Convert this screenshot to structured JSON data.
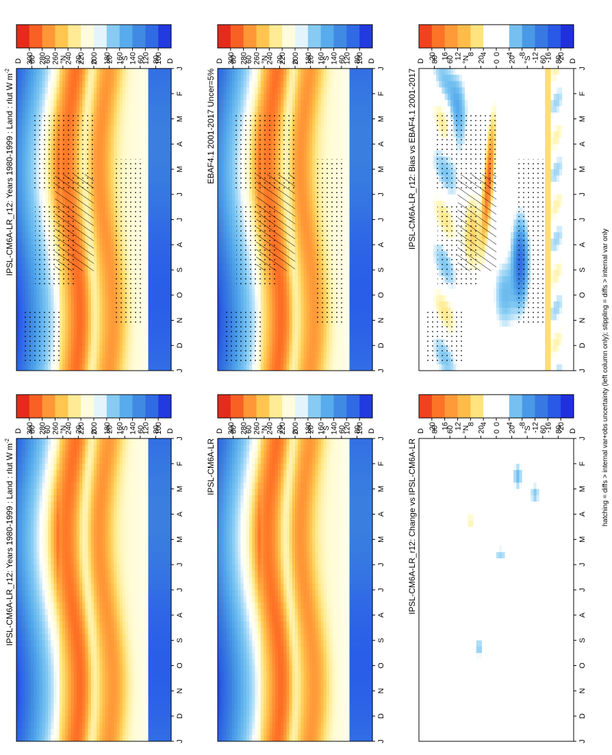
{
  "figure": {
    "footnote": "hatching = diffs > internal var+obs uncertainty (left column only); stippling = diffs > internal var only"
  },
  "chart_data": [
    {
      "type": "heatmap",
      "title": "IPSL-CM6A-LR_r12: Years 1980-1999 : Land : rlut W m",
      "title_sup": "-2",
      "x_ticks": [
        "J",
        "F",
        "M",
        "A",
        "M",
        "J",
        "J",
        "A",
        "S",
        "O",
        "N",
        "D",
        "J"
      ],
      "y_ticks": [
        "80",
        "60",
        "°N",
        "20",
        "0",
        "20",
        "°S",
        "60",
        "80"
      ],
      "y_edges": [
        "D",
        "D"
      ],
      "colorbar": {
        "labels": [
          "300",
          "280",
          "260",
          "240",
          "220",
          "200",
          "180",
          "160",
          "140",
          "120",
          "100"
        ],
        "min": 90,
        "max": 310
      },
      "pattern": "absolute",
      "stippling": true,
      "hatching": true
    },
    {
      "type": "heatmap",
      "title": "IPSL-CM6A-LR_r12: Years 1980-1999 : Land : rlut W m",
      "title_sup": "-2",
      "x_ticks": [
        "J",
        "F",
        "M",
        "A",
        "M",
        "J",
        "J",
        "A",
        "S",
        "O",
        "N",
        "D",
        "J"
      ],
      "y_ticks": [
        "80",
        "60",
        "°N",
        "20",
        "0",
        "20",
        "°S",
        "60",
        "80"
      ],
      "y_edges": [
        "D",
        "D"
      ],
      "colorbar": {
        "labels": [
          "300",
          "280",
          "260",
          "240",
          "220",
          "200",
          "180",
          "160",
          "140",
          "120",
          "100"
        ],
        "min": 90,
        "max": 310
      },
      "pattern": "absolute",
      "stippling": false,
      "hatching": false
    },
    {
      "type": "heatmap",
      "title": "EBAF4.1 2001-2017 Uncer=5%",
      "x_ticks": [
        "J",
        "F",
        "M",
        "A",
        "M",
        "J",
        "J",
        "A",
        "S",
        "O",
        "N",
        "D",
        "J"
      ],
      "y_ticks": [
        "80",
        "60",
        "°N",
        "20",
        "0",
        "20",
        "°S",
        "60",
        "80"
      ],
      "y_edges": [
        "D",
        "D"
      ],
      "colorbar": {
        "labels": [
          "300",
          "280",
          "260",
          "240",
          "220",
          "200",
          "180",
          "160",
          "140",
          "120",
          "100"
        ],
        "min": 90,
        "max": 310
      },
      "pattern": "absolute",
      "stippling": true,
      "hatching": true
    },
    {
      "type": "heatmap",
      "title": "IPSL-CM6A-LR",
      "x_ticks": [
        "J",
        "F",
        "M",
        "A",
        "M",
        "J",
        "J",
        "A",
        "S",
        "O",
        "N",
        "D",
        "J"
      ],
      "y_ticks": [
        "80",
        "60",
        "°N",
        "20",
        "0",
        "20",
        "°S",
        "60",
        "80"
      ],
      "y_edges": [
        "D",
        "D"
      ],
      "colorbar": {
        "labels": [
          "300",
          "280",
          "260",
          "240",
          "220",
          "200",
          "180",
          "160",
          "140",
          "120",
          "100"
        ],
        "min": 90,
        "max": 310
      },
      "pattern": "absolute",
      "stippling": false,
      "hatching": false
    },
    {
      "type": "heatmap",
      "title": "IPSL-CM6A-LR_r12: Bias vs EBAF4.1 2001-2017",
      "x_ticks": [
        "J",
        "F",
        "M",
        "A",
        "M",
        "J",
        "J",
        "A",
        "S",
        "O",
        "N",
        "D",
        "J"
      ],
      "y_ticks": [
        "80",
        "60",
        "°N",
        "20",
        "0",
        "20",
        "°S",
        "60",
        "80"
      ],
      "y_edges": [
        "D",
        "D"
      ],
      "colorbar": {
        "labels": [
          "20",
          "16",
          "12",
          "8",
          "4",
          "0",
          "-4",
          "-8",
          "-12",
          "-16",
          "-20"
        ],
        "min": -22,
        "max": 22
      },
      "pattern": "bias",
      "stippling": true,
      "hatching": true
    },
    {
      "type": "heatmap",
      "title": "IPSL-CM6A-LR_r12: Change vs IPSL-CM6A-LR",
      "x_ticks": [
        "J",
        "F",
        "M",
        "A",
        "M",
        "J",
        "J",
        "A",
        "S",
        "O",
        "N",
        "D",
        "J"
      ],
      "y_ticks": [
        "80",
        "60",
        "°N",
        "20",
        "0",
        "20",
        "°S",
        "60",
        "80"
      ],
      "y_edges": [
        "D",
        "D"
      ],
      "colorbar": {
        "labels": [
          "20",
          "16",
          "12",
          "8",
          "4",
          "0",
          "-4",
          "-8",
          "-12",
          "-16",
          "-20"
        ],
        "min": -22,
        "max": 22
      },
      "pattern": "change",
      "stippling": false,
      "hatching": false
    }
  ]
}
